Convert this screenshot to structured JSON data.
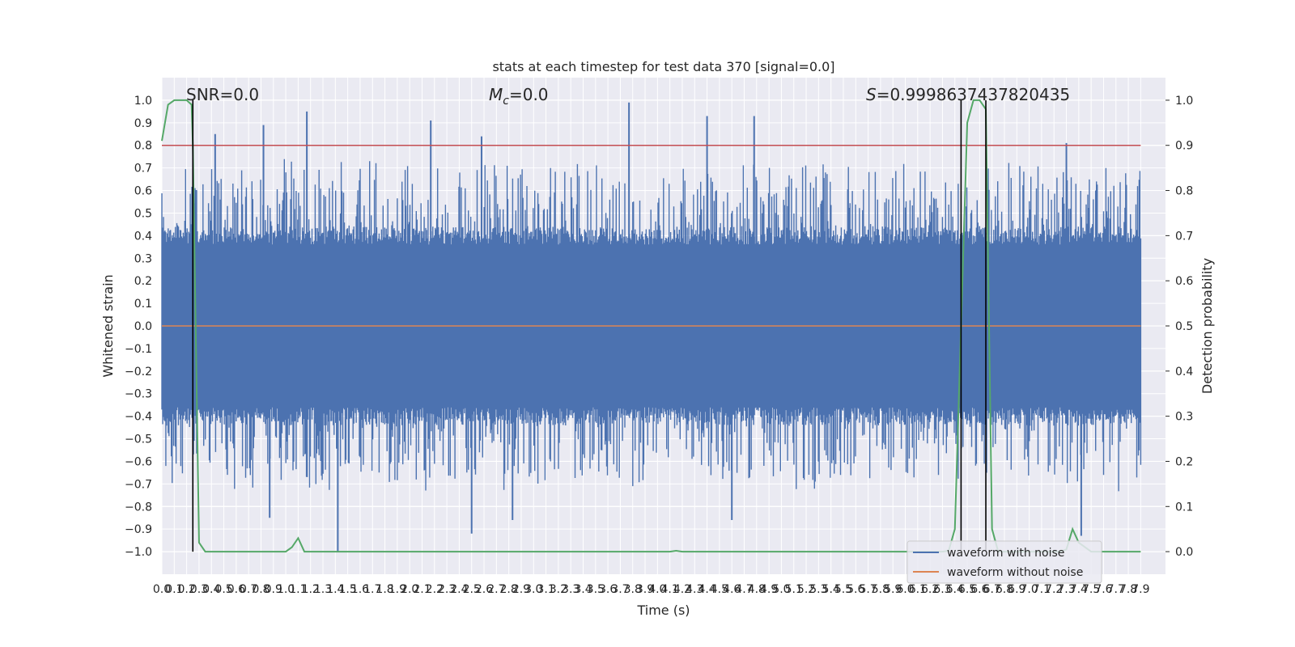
{
  "chart_data": {
    "type": "line",
    "title": "stats at each timestep for test data 370 [signal=0.0]",
    "xlabel": "Time (s)",
    "ylabel": "Whitened strain",
    "ylabel_right": "Detection probability",
    "xlim": [
      0.0,
      7.9
    ],
    "ylim": [
      -1.1,
      1.1
    ],
    "ylim_right": [
      -0.05,
      1.05
    ],
    "grid": true,
    "legend_position": "lower-right",
    "x_ticks": [
      "0.0",
      "0.1",
      "0.2",
      "0.3",
      "0.4",
      "0.5",
      "0.6",
      "0.7",
      "0.8",
      "0.9",
      "1.0",
      "1.1",
      "1.2",
      "1.3",
      "1.4",
      "1.5",
      "1.6",
      "1.7",
      "1.8",
      "1.9",
      "2.0",
      "2.1",
      "2.2",
      "2.3",
      "2.4",
      "2.5",
      "2.6",
      "2.7",
      "2.8",
      "2.9",
      "3.0",
      "3.1",
      "3.2",
      "3.3",
      "3.4",
      "3.5",
      "3.6",
      "3.7",
      "3.8",
      "3.9",
      "4.0",
      "4.1",
      "4.2",
      "4.3",
      "4.4",
      "4.5",
      "4.6",
      "4.7",
      "4.8",
      "4.9",
      "5.0",
      "5.1",
      "5.2",
      "5.3",
      "5.4",
      "5.5",
      "5.6",
      "5.7",
      "5.8",
      "5.9",
      "6.0",
      "6.1",
      "6.2",
      "6.3",
      "6.4",
      "6.5",
      "6.6",
      "6.7",
      "6.8",
      "6.9",
      "7.0",
      "7.1",
      "7.2",
      "7.3",
      "7.4",
      "7.5",
      "7.6",
      "7.7",
      "7.8",
      "7.9"
    ],
    "y_ticks_left": [
      "1.0",
      "0.9",
      "0.8",
      "0.7",
      "0.6",
      "0.5",
      "0.4",
      "0.3",
      "0.2",
      "0.1",
      "0.0",
      "−0.1",
      "−0.2",
      "−0.3",
      "−0.4",
      "−0.5",
      "−0.6",
      "−0.7",
      "−0.8",
      "−0.9",
      "−1.0"
    ],
    "y_ticks_right": [
      "1.0",
      "0.9",
      "0.8",
      "0.7",
      "0.6",
      "0.5",
      "0.4",
      "0.3",
      "0.2",
      "0.1",
      "0.0"
    ],
    "annotations": {
      "snr": "SNR=0.0",
      "mc_symbol": "M",
      "mc_sub": "c",
      "mc_value": "=0.0",
      "s_symbol": "S",
      "s_value": "=0.9998637437820435"
    },
    "threshold_right": 0.9,
    "vertical_markers_x": [
      0.25,
      6.45,
      6.65
    ],
    "series": [
      {
        "name": "waveform with noise",
        "color": "#4c72b0",
        "axis": "left",
        "x_range": [
          0.0,
          7.9
        ],
        "notable_peaks": [
          {
            "x": 0.43,
            "y": 0.85
          },
          {
            "x": 0.82,
            "y": 0.89
          },
          {
            "x": 1.17,
            "y": 0.95
          },
          {
            "x": 2.17,
            "y": 0.91
          },
          {
            "x": 2.58,
            "y": 0.84
          },
          {
            "x": 3.77,
            "y": 0.99
          },
          {
            "x": 4.4,
            "y": 0.93
          },
          {
            "x": 4.78,
            "y": 0.93
          },
          {
            "x": 7.3,
            "y": 0.81
          }
        ],
        "notable_troughs": [
          {
            "x": 1.42,
            "y": -1.0
          },
          {
            "x": 2.5,
            "y": -0.92
          },
          {
            "x": 2.83,
            "y": -0.86
          },
          {
            "x": 4.6,
            "y": -0.86
          },
          {
            "x": 7.42,
            "y": -0.93
          },
          {
            "x": 0.87,
            "y": -0.85
          }
        ]
      },
      {
        "name": "waveform without noise",
        "color": "#dd8452",
        "axis": "left",
        "x": [
          0.0,
          7.9
        ],
        "y": [
          0.0,
          0.0
        ]
      },
      {
        "name": "",
        "color": "#55a868",
        "axis": "right",
        "x": [
          0.0,
          0.05,
          0.1,
          0.15,
          0.2,
          0.24,
          0.25,
          0.3,
          0.35,
          0.4,
          0.5,
          0.6,
          0.7,
          0.8,
          0.9,
          1.0,
          1.05,
          1.1,
          1.15,
          1.2,
          1.3,
          1.4,
          1.5,
          2.0,
          3.0,
          3.5,
          4.0,
          4.1,
          4.15,
          4.2,
          4.3,
          5.0,
          6.0,
          6.3,
          6.35,
          6.4,
          6.45,
          6.5,
          6.55,
          6.6,
          6.65,
          6.7,
          6.75,
          6.8,
          7.0,
          7.2,
          7.25,
          7.3,
          7.35,
          7.4,
          7.5,
          7.6,
          7.7,
          7.8,
          7.9
        ],
        "y": [
          0.91,
          0.99,
          1.0,
          1.0,
          1.0,
          0.99,
          0.9,
          0.02,
          0.0,
          0.0,
          0.0,
          0.0,
          0.0,
          0.0,
          0.0,
          0.0,
          0.01,
          0.03,
          0.0,
          0.0,
          0.0,
          0.0,
          0.0,
          0.0,
          0.0,
          0.0,
          0.0,
          0.0,
          0.002,
          0.0,
          0.0,
          0.0,
          0.0,
          0.0,
          0.002,
          0.05,
          0.5,
          0.95,
          1.0,
          1.0,
          0.98,
          0.05,
          0.0,
          0.0,
          0.0,
          0.0,
          0.0,
          0.005,
          0.05,
          0.02,
          0.0,
          0.0,
          0.0,
          0.0,
          0.0
        ]
      },
      {
        "name": "",
        "color": "#c44e52",
        "axis": "right",
        "x": [
          0.0,
          7.9
        ],
        "y": [
          0.9,
          0.9
        ]
      }
    ]
  }
}
